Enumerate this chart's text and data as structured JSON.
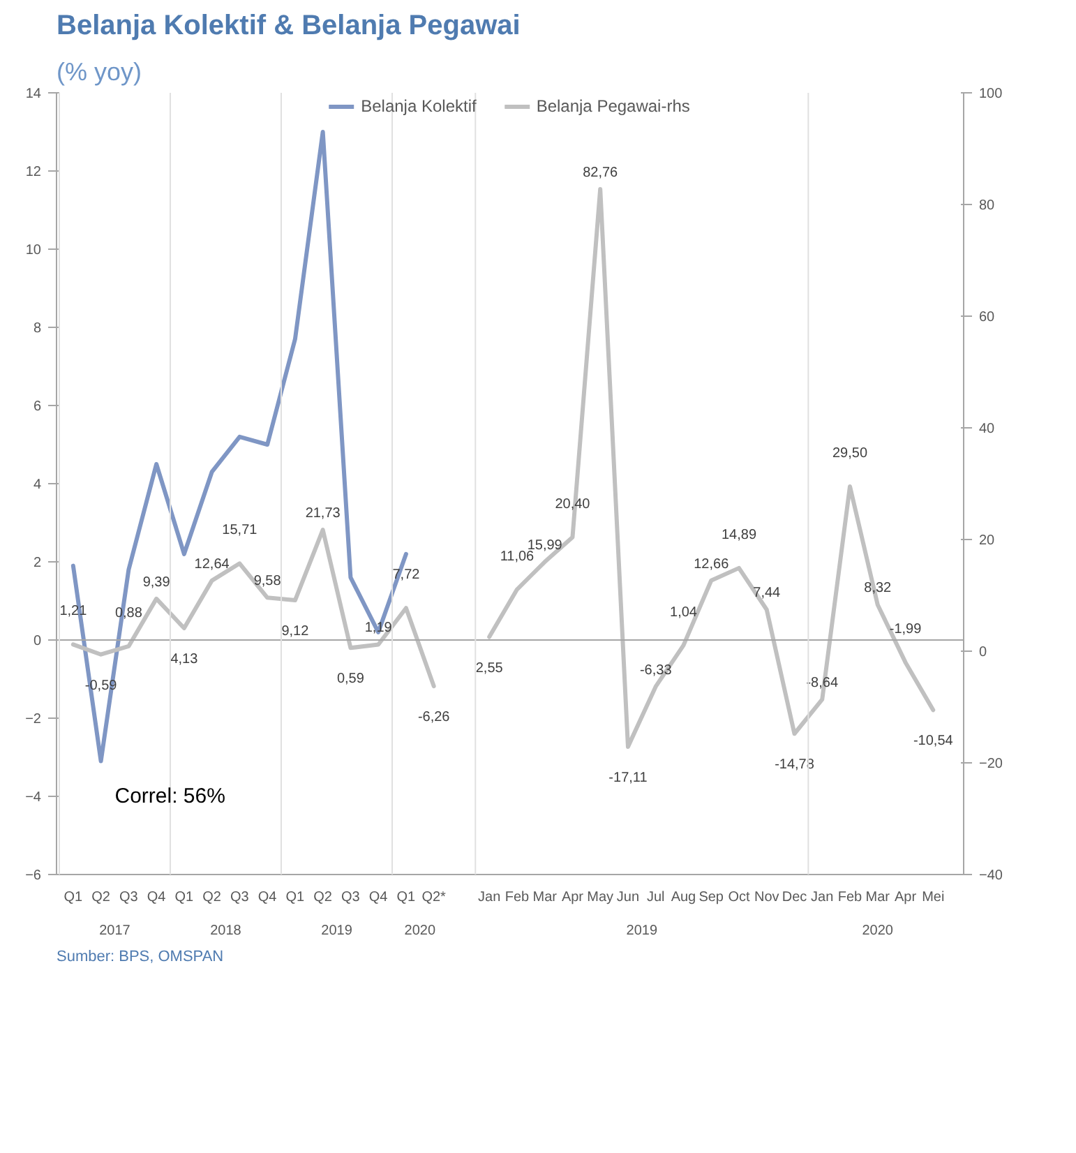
{
  "chart_data": {
    "type": "line",
    "title": "Belanja Kolektif & Belanja Pegawai",
    "subtitle": "(% yoy)",
    "categories": [
      "Q1",
      "Q2",
      "Q3",
      "Q4",
      "Q1",
      "Q2",
      "Q3",
      "Q4",
      "Q1",
      "Q2",
      "Q3",
      "Q4",
      "Q1",
      "Q2*",
      null,
      "Jan",
      "Feb",
      "Mar",
      "Apr",
      "May",
      "Jun",
      "Jul",
      "Aug",
      "Sep",
      "Oct",
      "Nov",
      "Dec",
      "Jan",
      "Feb",
      "Mar",
      "Apr",
      "Mei"
    ],
    "series": [
      {
        "name": "Belanja Kolektif",
        "color": "#7f96c4",
        "values": [
          1.9,
          -3.1,
          1.8,
          4.5,
          2.2,
          4.3,
          5.2,
          5.0,
          7.7,
          13.0,
          1.6,
          0.2,
          2.2,
          null,
          null,
          null,
          null,
          null,
          null,
          null,
          null,
          null,
          null,
          null,
          null,
          null,
          null,
          null,
          null,
          null,
          null,
          null
        ]
      },
      {
        "name": "Belanja Pegawai-rhs",
        "color": "#c0c0c0",
        "axis": "y2",
        "values": [
          1.21,
          -0.59,
          0.88,
          9.39,
          4.13,
          12.64,
          15.71,
          9.58,
          9.12,
          21.73,
          0.59,
          1.19,
          7.72,
          -6.26,
          null,
          2.55,
          11.06,
          15.99,
          20.4,
          82.76,
          -17.11,
          -6.33,
          1.04,
          12.66,
          14.89,
          7.44,
          -14.78,
          -8.64,
          29.5,
          8.32,
          -1.99,
          -10.54
        ],
        "value_labels": [
          "1,21",
          "-0,59",
          "0,88",
          "9,39",
          "4,13",
          "12,64",
          "15,71",
          "9,58",
          "9,12",
          "21,73",
          "0,59",
          "1,19",
          "7,72",
          "-6,26",
          null,
          "2,55",
          "11,06",
          "15,99",
          "20,40",
          "82,76",
          "-17,11",
          "-6,33",
          "1,04",
          "12,66",
          "14,89",
          "7,44",
          "-14,78",
          "-8,64",
          "29,50",
          "8,32",
          "-1,99",
          "-10,54"
        ]
      }
    ],
    "ylim": [
      -6,
      14
    ],
    "yticks": [
      -6,
      -4,
      -2,
      0,
      2,
      4,
      6,
      8,
      10,
      12,
      14
    ],
    "y2lim": [
      -40,
      100
    ],
    "y2ticks": [
      -40,
      -20,
      0,
      20,
      40,
      60,
      80,
      100
    ],
    "ref_lines": [
      {
        "axis": "y",
        "value": 0,
        "color": "#a6a6a6"
      }
    ],
    "annotations": [
      "Correl: 56%",
      "Sumber: BPS, OMSPAN",
      "2017",
      "2018",
      "2019",
      "2020",
      "2019",
      "2020"
    ],
    "legend": "top",
    "grid": false,
    "marker": "none",
    "line_style": "solid"
  }
}
